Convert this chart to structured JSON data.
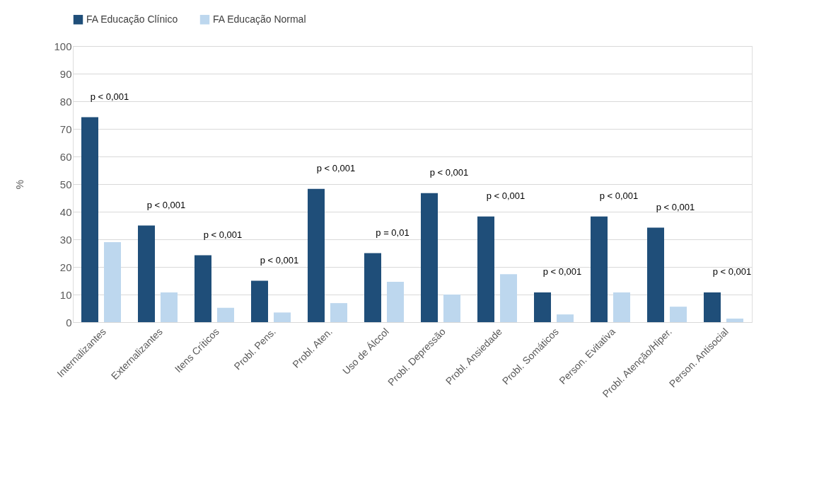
{
  "chart_data": {
    "type": "bar",
    "ylabel": "%",
    "categories": [
      "Internalizantes",
      "Externalizantes",
      "Itens Críticos",
      "Probl. Pens.",
      "Probl. Aten.",
      "Uso de Álccol",
      "Probl. Depressão",
      "Probl. Ansiedade",
      "Probl. Somáticos",
      "Person. Evitativa",
      "Probl. Atenção/Hiper.",
      "Person. Antisocial"
    ],
    "series": [
      {
        "name": "FA Educação Clínico",
        "color": "#1f4e79",
        "values": [
          74.2,
          35,
          24.2,
          15,
          48.3,
          25,
          46.7,
          38.3,
          10.8,
          38.3,
          34.2,
          10.8
        ]
      },
      {
        "name": "FA Educação Normal",
        "color": "#bdd7ee",
        "values": [
          29,
          10.8,
          5.2,
          3.5,
          6.9,
          14.6,
          10,
          17.4,
          2.8,
          10.8,
          5.6,
          1.3
        ]
      }
    ],
    "ylim": [
      0,
      100
    ],
    "yticks": [
      0,
      10,
      20,
      30,
      40,
      50,
      60,
      70,
      80,
      90,
      100
    ],
    "grid": "y",
    "legend": "top",
    "annotations": [
      "p < 0,001",
      "p < 0,001",
      "p < 0,001",
      "p < 0,001",
      "p < 0,001",
      "p = 0,01",
      "p < 0,001",
      "p < 0,001",
      "p < 0,001",
      "p < 0,001",
      "p < 0,001",
      "p  < 0,001"
    ]
  }
}
